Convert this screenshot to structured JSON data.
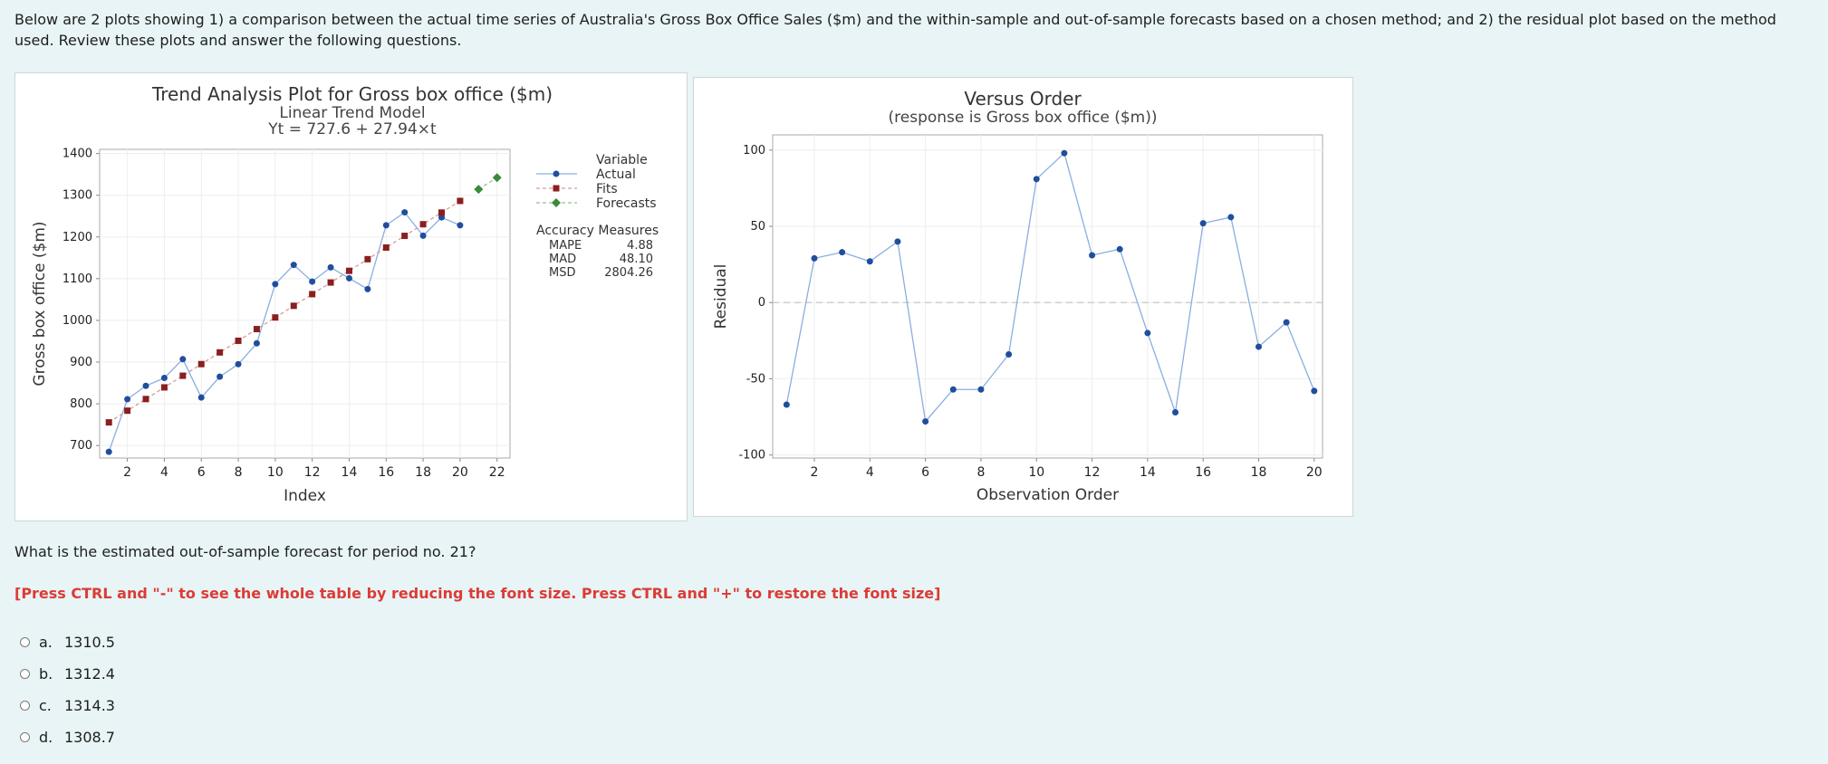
{
  "intro": "Below are 2 plots showing 1) a comparison between the actual time series of Australia's Gross Box Office Sales ($m) and the within-sample and out-of-sample forecasts based on a chosen method; and 2) the residual plot based on the method used. Review these plots and answer the following questions.",
  "question": "What is the estimated out-of-sample forecast for period no. 21?",
  "note": "[Press CTRL and \"-\" to see the whole table by reducing the font size. Press CTRL and \"+\" to restore the font size]",
  "options": [
    {
      "letter": "a.",
      "text": "1310.5"
    },
    {
      "letter": "b.",
      "text": "1312.4"
    },
    {
      "letter": "c.",
      "text": "1314.3"
    },
    {
      "letter": "d.",
      "text": "1308.7"
    }
  ],
  "chart_data": [
    {
      "type": "line",
      "title": "Trend Analysis Plot for Gross box office ($m)",
      "subtitle": "Linear Trend Model",
      "equation": "Yt = 727.6 + 27.94×t",
      "xlabel": "Index",
      "ylabel": "Gross box office ($m)",
      "xlim": [
        0.5,
        22.7
      ],
      "ylim": [
        670,
        1410
      ],
      "xticks": [
        2,
        4,
        6,
        8,
        10,
        12,
        14,
        16,
        18,
        20,
        22
      ],
      "yticks": [
        700,
        800,
        900,
        1000,
        1100,
        1200,
        1300,
        1400
      ],
      "grid": true,
      "legend_title": "Variable",
      "legend_position": "right",
      "series": [
        {
          "name": "Actual",
          "color": "#1f4e9c",
          "marker": "circle",
          "x": [
            1,
            2,
            3,
            4,
            5,
            6,
            7,
            8,
            9,
            10,
            11,
            12,
            13,
            14,
            15,
            16,
            17,
            18,
            19,
            20
          ],
          "y": [
            685,
            811,
            843,
            862,
            907,
            815,
            865,
            895,
            945,
            1087,
            1133,
            1093,
            1127,
            1101,
            1075,
            1228,
            1259,
            1203,
            1247,
            1228
          ]
        },
        {
          "name": "Fits",
          "color": "#8b1e1e",
          "marker": "square",
          "x": [
            1,
            2,
            3,
            4,
            5,
            6,
            7,
            8,
            9,
            10,
            11,
            12,
            13,
            14,
            15,
            16,
            17,
            18,
            19,
            20
          ],
          "y": [
            755.5,
            783.5,
            811.4,
            839.4,
            867.3,
            895.2,
            923.2,
            951.1,
            979.1,
            1007.0,
            1034.9,
            1062.9,
            1090.8,
            1118.8,
            1146.7,
            1174.6,
            1202.6,
            1230.5,
            1258.5,
            1286.4
          ]
        },
        {
          "name": "Forecasts",
          "color": "#3a8a3a",
          "marker": "diamond",
          "x": [
            21,
            22
          ],
          "y": [
            1314.3,
            1342.3
          ]
        }
      ],
      "accuracy": {
        "title": "Accuracy Measures",
        "rows": [
          {
            "label": "MAPE",
            "value": "4.88"
          },
          {
            "label": "MAD",
            "value": "48.10"
          },
          {
            "label": "MSD",
            "value": "2804.26"
          }
        ]
      }
    },
    {
      "type": "line",
      "title": "Versus Order",
      "subtitle": "(response is Gross box office ($m))",
      "xlabel": "Observation Order",
      "ylabel": "Residual",
      "xlim": [
        0.5,
        20.3
      ],
      "ylim": [
        -102,
        110
      ],
      "xticks": [
        2,
        4,
        6,
        8,
        10,
        12,
        14,
        16,
        18,
        20
      ],
      "yticks": [
        -100,
        -50,
        0,
        50,
        100
      ],
      "grid": true,
      "reference_line": 0,
      "series": [
        {
          "color": "#1f4e9c",
          "x": [
            1,
            2,
            3,
            4,
            5,
            6,
            7,
            8,
            9,
            10,
            11,
            12,
            13,
            14,
            15,
            16,
            17,
            18,
            19,
            20
          ],
          "y": [
            -67,
            29,
            33,
            27,
            40,
            -78,
            -57,
            -57,
            -34,
            81,
            98,
            31,
            35,
            -20,
            -72,
            52,
            56,
            -29,
            -13,
            -58
          ]
        }
      ]
    }
  ]
}
